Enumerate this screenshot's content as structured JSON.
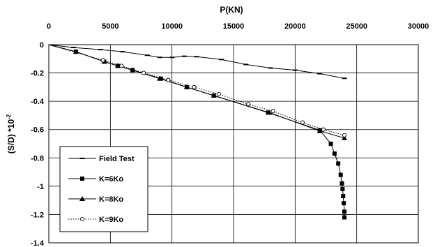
{
  "chart_data": {
    "type": "line",
    "xlabel": "P(KN)",
    "ylabel": "(S/D) *10",
    "ylabel_exponent": "-2",
    "xlim": [
      0,
      30000
    ],
    "ylim": [
      -1.4,
      0
    ],
    "x_axis_position": "top",
    "grid": true,
    "legend_position": "bottom-left",
    "x_ticks": [
      "0",
      "5000",
      "10000",
      "15000",
      "20000",
      "25000",
      "30000"
    ],
    "y_ticks": [
      "0",
      "-0.2",
      "-0.4",
      "-0.6",
      "-0.8",
      "-1",
      "-1.2",
      "-1.4"
    ],
    "series": [
      {
        "name": "Field Test",
        "marker": "dash",
        "line": "solid",
        "color": "#000000",
        "points": [
          [
            0,
            0
          ],
          [
            2000,
            -0.02
          ],
          [
            4200,
            -0.035
          ],
          [
            6000,
            -0.05
          ],
          [
            8000,
            -0.075
          ],
          [
            9000,
            -0.09
          ],
          [
            10000,
            -0.09
          ],
          [
            11000,
            -0.082
          ],
          [
            12000,
            -0.085
          ],
          [
            14000,
            -0.105
          ],
          [
            16000,
            -0.14
          ],
          [
            18000,
            -0.165
          ],
          [
            20000,
            -0.18
          ],
          [
            22000,
            -0.205
          ],
          [
            24000,
            -0.238
          ]
        ]
      },
      {
        "name": "K=6Ko",
        "marker": "square",
        "line": "solid",
        "color": "#000000",
        "points": [
          [
            0,
            0
          ],
          [
            2200,
            -0.05
          ],
          [
            4500,
            -0.12
          ],
          [
            5600,
            -0.15
          ],
          [
            6800,
            -0.18
          ],
          [
            9100,
            -0.24
          ],
          [
            11200,
            -0.3
          ],
          [
            13400,
            -0.36
          ],
          [
            17800,
            -0.48
          ],
          [
            22000,
            -0.605
          ],
          [
            22900,
            -0.7
          ],
          [
            23200,
            -0.77
          ],
          [
            23500,
            -0.84
          ],
          [
            23700,
            -0.92
          ],
          [
            23800,
            -0.98
          ],
          [
            23850,
            -1.02
          ],
          [
            23900,
            -1.07
          ],
          [
            23950,
            -1.12
          ],
          [
            24000,
            -1.18
          ],
          [
            24000,
            -1.22
          ]
        ]
      },
      {
        "name": "K=8Ko",
        "marker": "triangle",
        "line": "solid",
        "color": "#000000",
        "points": [
          [
            0,
            0
          ],
          [
            2200,
            -0.05
          ],
          [
            4500,
            -0.12
          ],
          [
            5600,
            -0.15
          ],
          [
            6800,
            -0.18
          ],
          [
            9000,
            -0.24
          ],
          [
            11200,
            -0.3
          ],
          [
            13400,
            -0.36
          ],
          [
            17900,
            -0.48
          ],
          [
            22000,
            -0.61
          ],
          [
            24000,
            -0.66
          ]
        ]
      },
      {
        "name": "K=9Ko",
        "marker": "circle",
        "line": "dotted",
        "color": "#000000",
        "points": [
          [
            0,
            0
          ],
          [
            4400,
            -0.11
          ],
          [
            5900,
            -0.15
          ],
          [
            7700,
            -0.2
          ],
          [
            9700,
            -0.25
          ],
          [
            11800,
            -0.3
          ],
          [
            13800,
            -0.35
          ],
          [
            16200,
            -0.42
          ],
          [
            18200,
            -0.47
          ],
          [
            20600,
            -0.55
          ],
          [
            22300,
            -0.6
          ],
          [
            24000,
            -0.64
          ]
        ]
      }
    ]
  }
}
